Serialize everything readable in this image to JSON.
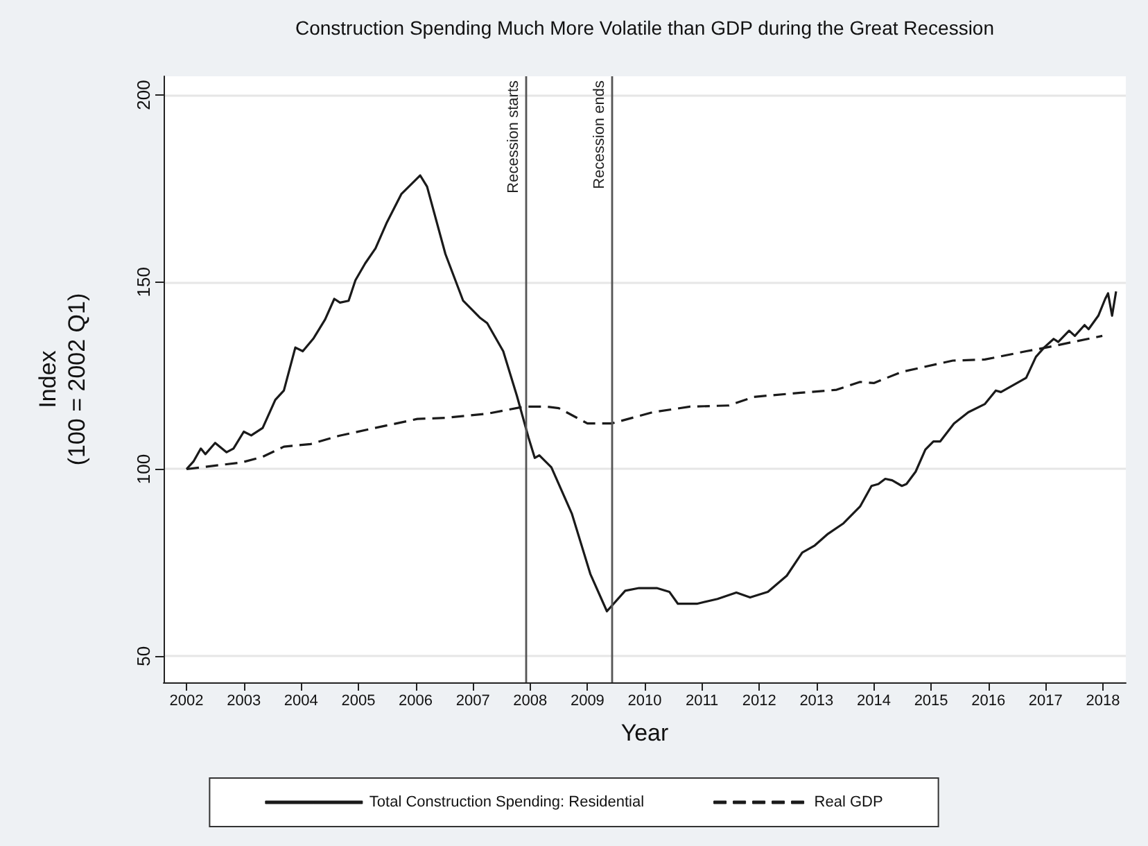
{
  "chart_data": {
    "type": "line",
    "title": "Construction Spending Much More Volatile than GDP during the Great Recession",
    "xlabel": "Year",
    "ylabel": "Index\n(100 = 2002 Q1)",
    "xlim": [
      2001.6,
      2018.4
    ],
    "xticks": [
      2002,
      2003,
      2004,
      2005,
      2006,
      2007,
      2008,
      2009,
      2010,
      2011,
      2012,
      2013,
      2014,
      2015,
      2016,
      2017,
      2018
    ],
    "ylim": [
      43,
      205
    ],
    "yticks": [
      50,
      100,
      150,
      200
    ],
    "grid": "y",
    "legend": "bottom",
    "marker": "none",
    "ref_lines": [
      {
        "axis": "x",
        "value": 2007.92,
        "label": "Recession starts",
        "color": "#555555"
      },
      {
        "axis": "x",
        "value": 2009.42,
        "label": "Recession ends",
        "color": "#555555"
      }
    ],
    "series": [
      {
        "name": "Total Construction Spending: Residential",
        "color": "#1a1a1a",
        "line_style": "solid",
        "x": [
          2002,
          2002.12,
          2002.25,
          2002.33,
          2002.5,
          2002.7,
          2002.82,
          2003,
          2003.13,
          2003.33,
          2003.55,
          2003.7,
          2003.9,
          2004.03,
          2004.22,
          2004.42,
          2004.58,
          2004.68,
          2004.83,
          2004.95,
          2005.12,
          2005.3,
          2005.5,
          2005.75,
          2006.08,
          2006.2,
          2006.52,
          2006.83,
          2007.12,
          2007.25,
          2007.53,
          2007.77,
          2007.97,
          2008.08,
          2008.16,
          2008.37,
          2008.73,
          2009.05,
          2009.34,
          2009.66,
          2009.9,
          2010.21,
          2010.43,
          2010.58,
          2010.91,
          2011.27,
          2011.6,
          2011.84,
          2012.15,
          2012.48,
          2012.75,
          2012.97,
          2013.2,
          2013.47,
          2013.76,
          2013.96,
          2014.08,
          2014.2,
          2014.32,
          2014.49,
          2014.57,
          2014.73,
          2014.9,
          2015.04,
          2015.16,
          2015.4,
          2015.65,
          2015.94,
          2016.13,
          2016.22,
          2016.66,
          2016.83,
          2016.98,
          2017.14,
          2017.22,
          2017.41,
          2017.51,
          2017.68,
          2017.75,
          2017.92,
          2018.04,
          2018.09,
          2018.16,
          2018.23
        ],
        "values": [
          100,
          102,
          105.5,
          104,
          107,
          104.5,
          105.5,
          110,
          109,
          111,
          118.5,
          121,
          132.5,
          131.5,
          135,
          140,
          145.5,
          144.5,
          145,
          150.5,
          155,
          159,
          166,
          173.5,
          178.5,
          175.5,
          157.5,
          145,
          140.5,
          139,
          131.5,
          119.5,
          108.5,
          103,
          103.7,
          100.5,
          88,
          72,
          62,
          67.5,
          68.2,
          68.2,
          67.2,
          64,
          64,
          65.3,
          67,
          65.7,
          67.2,
          71.5,
          77.7,
          79.6,
          82.7,
          85.5,
          90,
          95.5,
          96,
          97.4,
          97,
          95.5,
          96,
          99.3,
          105.2,
          107.4,
          107.4,
          112.2,
          115.2,
          117.4,
          121,
          120.6,
          124.4,
          130,
          132.6,
          134.8,
          134,
          137,
          135.6,
          138.5,
          137.4,
          141,
          145.5,
          147,
          141,
          147.5
        ]
      },
      {
        "name": "Real GDP",
        "color": "#1a1a1a",
        "line_style": "dashed",
        "x": [
          2002,
          2002.97,
          2003.33,
          2003.7,
          2004.17,
          2004.66,
          2005.23,
          2006.03,
          2006.52,
          2007.25,
          2007.9,
          2008.28,
          2008.5,
          2009,
          2009.42,
          2010.14,
          2010.79,
          2011.47,
          2011.9,
          2012.72,
          2013.35,
          2013.76,
          2014,
          2014.49,
          2015.38,
          2015.94,
          2016.66,
          2016.98,
          2017.99
        ],
        "values": [
          100,
          101.8,
          103.3,
          106,
          106.7,
          108.9,
          110.8,
          113.4,
          113.7,
          114.8,
          116.7,
          116.7,
          116.3,
          112.2,
          112.2,
          115.2,
          116.7,
          117,
          119.3,
          120.4,
          121.2,
          123.3,
          123,
          126,
          129,
          129.3,
          131.5,
          132.4,
          135.6
        ]
      }
    ]
  }
}
